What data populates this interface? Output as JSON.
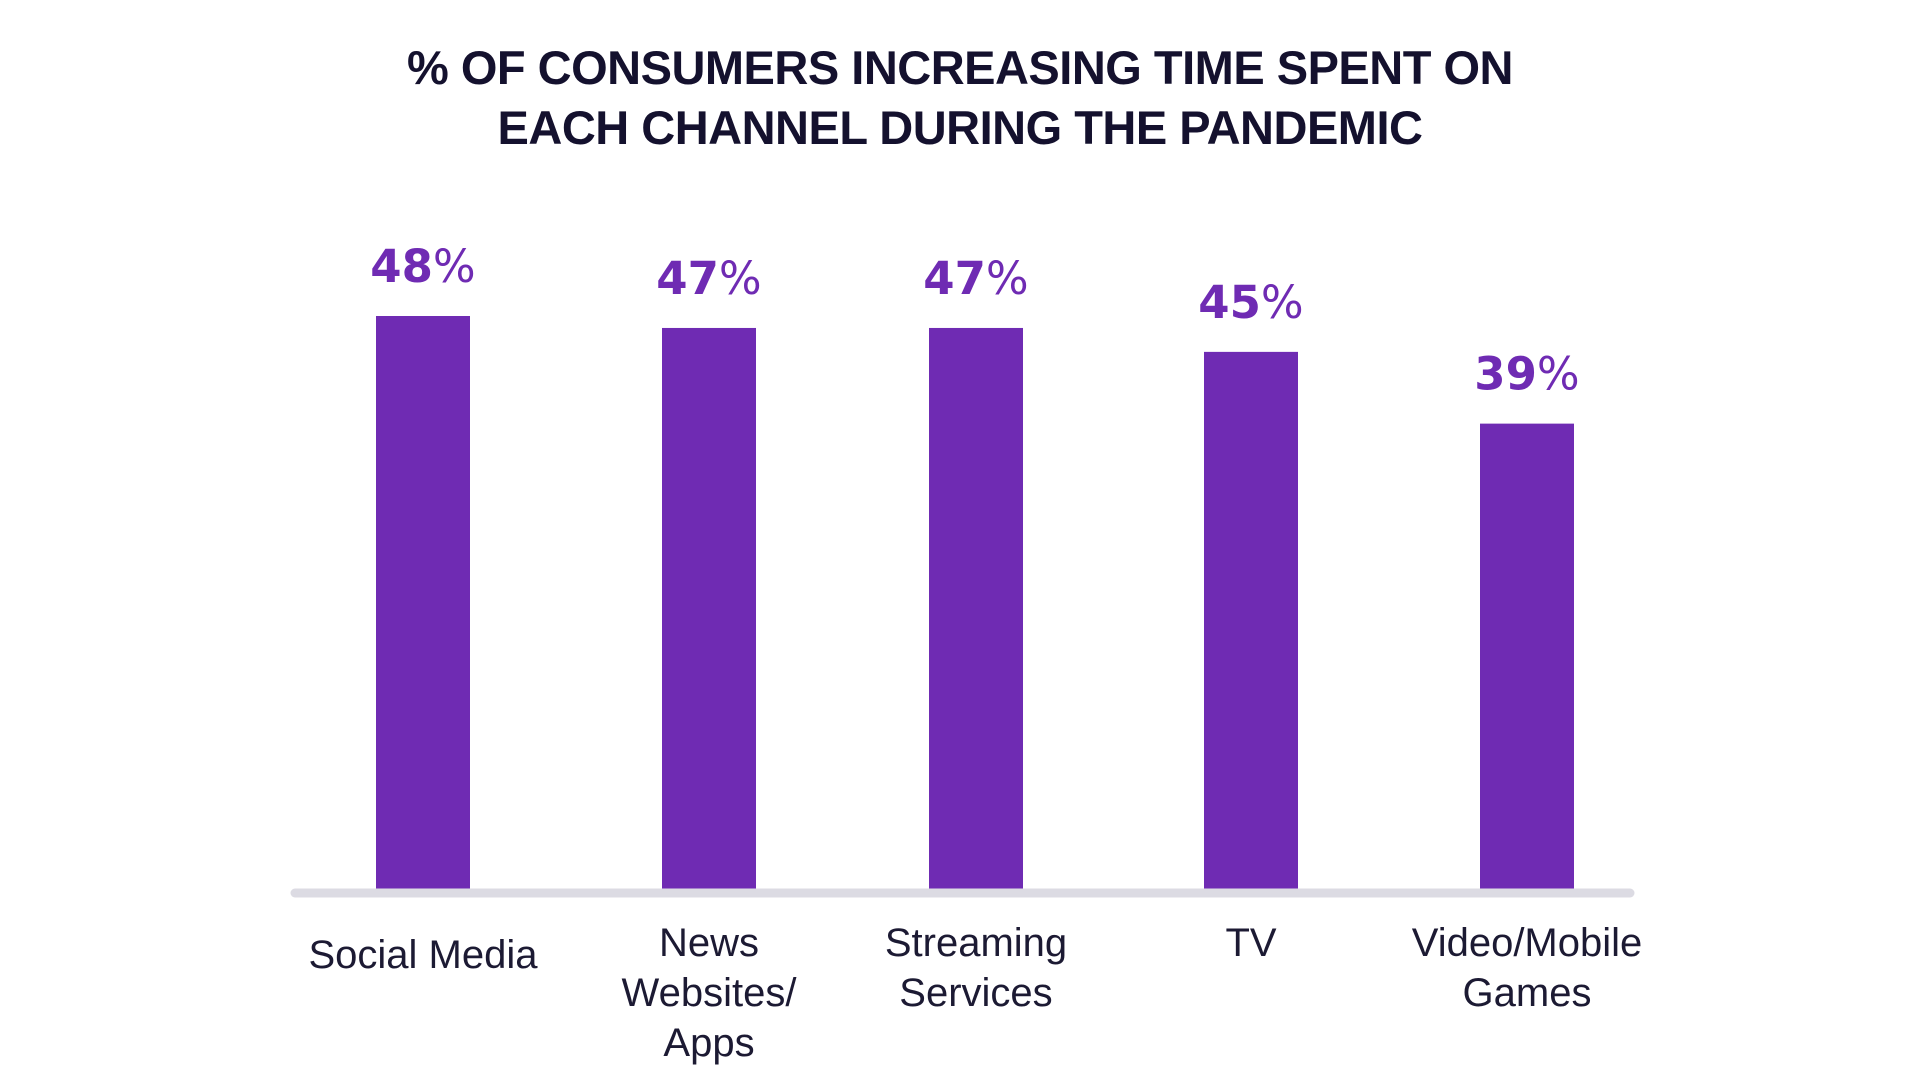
{
  "chart_data": {
    "type": "bar",
    "title_lines": [
      "% OF CONSUMERS INCREASING TIME SPENT ON",
      "EACH CHANNEL DURING THE PANDEMIC"
    ],
    "categories": [
      [
        "Social Media"
      ],
      [
        "News",
        "Websites/",
        "Apps"
      ],
      [
        "Streaming",
        "Services"
      ],
      [
        "TV"
      ],
      [
        "Video/Mobile",
        "Games"
      ]
    ],
    "values": [
      48,
      47,
      47,
      45,
      39
    ],
    "value_labels": [
      "48",
      "47",
      "47",
      "45",
      "39"
    ],
    "value_suffix": "%",
    "ylim": [
      0,
      48
    ],
    "grid": false,
    "legend": "none",
    "colors": {
      "bar": "#6f2bb3",
      "value_text": "#6f2bb3",
      "baseline": "#dcdbe3",
      "title": "#14112e",
      "category_text": "#1c1a33"
    }
  }
}
